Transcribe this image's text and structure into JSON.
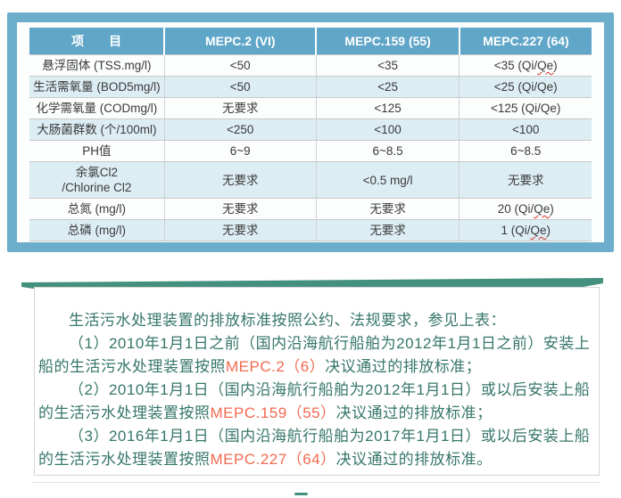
{
  "colors": {
    "frame_blue": "#6cadcb",
    "header_blue": "#5fa6c8",
    "alt_row_blue": "#ddedf4",
    "wave_green": "#44907e",
    "note_text_green": "#36766a",
    "highlight_red": "#f26a50",
    "squiggle_red": "#d93025"
  },
  "table": {
    "headers": [
      "项　　目",
      "MEPC.2  (VI)",
      "MEPC.159  (55)",
      "MEPC.227  (64)"
    ],
    "rows": [
      {
        "cells": [
          "悬浮固体 (TSS.mg/l)",
          "<50",
          "<35",
          "<35  (Qi/Qe)"
        ]
      },
      {
        "cells": [
          "生活需氧量 (BOD5mg/l)",
          "<50",
          "<25",
          "<25  (Qi/Qe)"
        ]
      },
      {
        "cells": [
          "化学需氧量 (CODmg/l)",
          "无要求",
          "<125",
          "<125  (Qi/Qe)"
        ]
      },
      {
        "cells": [
          "大肠菌群数 (个/100ml)",
          "<250",
          "<100",
          "<100"
        ]
      },
      {
        "cells": [
          "PH值",
          "6~9",
          "6~8.5",
          "6~8.5"
        ]
      },
      {
        "cells": [
          "余氯Cl2\n/Chlorine Cl2",
          "无要求",
          "<0.5 mg/l",
          "无要求"
        ]
      },
      {
        "cells": [
          "总氮 (mg/l)",
          "无要求",
          "无要求",
          "20  (Qi/Qe)"
        ]
      },
      {
        "cells": [
          "总磷 (mg/l)",
          "无要求",
          "无要求",
          "1  (Qi/Qe)"
        ]
      }
    ],
    "wavy_qe_rows": [
      0,
      6,
      7
    ]
  },
  "notes": {
    "paragraphs": [
      {
        "runs": [
          {
            "text": "生活污水处理装置的排放标准按照公约、法规要求，参见上表："
          }
        ]
      },
      {
        "runs": [
          {
            "text": "（1）2010年1月1日之前（国内沿海航行船舶为2012年1月1日之前）安装上船的生活污水处理装置按照"
          },
          {
            "text": "MEPC.2（6）",
            "highlight": true
          },
          {
            "text": "决议通过的排放标准；"
          }
        ]
      },
      {
        "runs": [
          {
            "text": "（2）2010年1月1日（国内沿海航行船舶为2012年1月1日）或以后安装上船的生活污水处理装置按照"
          },
          {
            "text": "MEPC.159（55）",
            "highlight": true
          },
          {
            "text": "决议通过的排放标准；"
          }
        ]
      },
      {
        "runs": [
          {
            "text": "（3）2016年1月1日（国内沿海航行船舶为2017年1月1日）或以后安装上船的生活污水处理装置按照"
          },
          {
            "text": "MEPC.227（64）",
            "highlight": true
          },
          {
            "text": "决议通过的排放标准。"
          }
        ]
      }
    ]
  }
}
